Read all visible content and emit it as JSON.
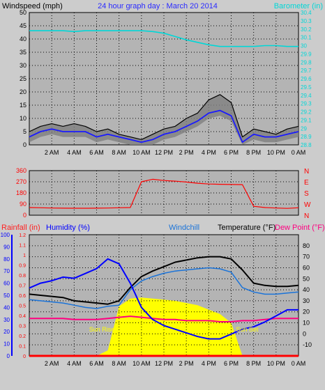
{
  "colors": {
    "page_bg": "#cccccc",
    "plot_bg": "#b4b4b4",
    "grid": "#000000",
    "windspeed": "#000000",
    "gust_shadow": "#808080",
    "wind_avg": "#1a1aff",
    "barometer": "#00d7d7",
    "direction": "#ff0000",
    "rain": "#ff0000",
    "humidity": "#0000ff",
    "windchill": "#1a73d9",
    "temperature": "#000000",
    "dewpoint": "#ff0080",
    "solar": "#ffff00"
  },
  "chart_data": [
    {
      "type": "line",
      "title": "24 hour graph day : March 20 2014",
      "ylabel": "Windspeed (mph)",
      "y2label": "Barometer (in)",
      "ylim": [
        0,
        50
      ],
      "y_ticks": [
        "0",
        "5",
        "10",
        "15",
        "20",
        "25",
        "30",
        "35",
        "40",
        "45",
        "50"
      ],
      "y2lim": [
        28.8,
        30.4
      ],
      "y2_ticks": [
        "28.8",
        "28.9",
        "29",
        "29.1",
        "29.2",
        "29.3",
        "29.4",
        "29.5",
        "29.6",
        "29.7",
        "29.8",
        "29.9",
        "30",
        "30.1",
        "30.2",
        "30.3",
        "30.4"
      ],
      "x_ticks": [
        "2 AM",
        "4 AM",
        "6 AM",
        "8 AM",
        "10 AM",
        "12 PM",
        "2 PM",
        "4 PM",
        "6 PM",
        "8 PM",
        "10 PM",
        "0 AM"
      ],
      "x_hours": [
        0,
        1,
        2,
        3,
        4,
        5,
        6,
        7,
        8,
        9,
        10,
        11,
        12,
        13,
        14,
        15,
        16,
        17,
        18,
        19,
        20,
        21,
        22,
        23,
        24
      ],
      "series": [
        {
          "key": "windspeed",
          "values": [
            5,
            7,
            8,
            7,
            8,
            7,
            5,
            6,
            4,
            3,
            2,
            4,
            6,
            7,
            10,
            12,
            17,
            19,
            16,
            3,
            6,
            5,
            4,
            6,
            7
          ]
        },
        {
          "key": "wind_avg",
          "values": [
            3,
            5,
            6,
            5,
            5,
            5,
            3,
            4,
            3,
            2,
            1,
            2,
            4,
            5,
            7,
            9,
            12,
            13,
            11,
            1,
            4,
            3,
            3,
            4,
            5
          ]
        },
        {
          "key": "barometer",
          "values": [
            30.18,
            30.18,
            30.18,
            30.18,
            30.17,
            30.18,
            30.18,
            30.18,
            30.18,
            30.18,
            30.18,
            30.17,
            30.15,
            30.11,
            30.07,
            30.04,
            30.01,
            29.99,
            29.99,
            29.99,
            29.99,
            30.0,
            30.0,
            29.99,
            29.99
          ]
        }
      ]
    },
    {
      "type": "line",
      "ylim": [
        0,
        360
      ],
      "y_ticks": [
        "0",
        "90",
        "180",
        "270",
        "360"
      ],
      "compass_labels": [
        "N",
        "W",
        "S",
        "E",
        "N"
      ],
      "x_hours": [
        0,
        1,
        2,
        3,
        4,
        5,
        6,
        7,
        8,
        9,
        10,
        11,
        12,
        13,
        14,
        15,
        16,
        17,
        18,
        19,
        20,
        21,
        22,
        23,
        24
      ],
      "series": [
        {
          "key": "direction",
          "values": [
            62,
            60,
            58,
            57,
            56,
            56,
            57,
            58,
            60,
            62,
            270,
            290,
            280,
            275,
            268,
            258,
            252,
            250,
            248,
            247,
            72,
            62,
            58,
            55,
            60
          ]
        }
      ]
    },
    {
      "type": "line",
      "ylabel": "Rainfall (in)",
      "y2label": "Humidity (%)",
      "y3label": "Windchill",
      "y4label": "Temperature (°F)",
      "y5label": "Dew Point (°F)",
      "rain_ticks": [
        "0",
        "0.1",
        "0.2",
        "0.3",
        "0.4",
        "0.5",
        "0.6",
        "0.7",
        "0.8",
        "0.9",
        "1",
        "1.1",
        "1.2"
      ],
      "humidity_ticks": [
        "0",
        "10",
        "20",
        "30",
        "40",
        "50",
        "60",
        "70",
        "80",
        "90",
        "100"
      ],
      "temp_lim": [
        -20,
        90
      ],
      "temp_ticks": [
        "-10",
        "0",
        "10",
        "20",
        "30",
        "40",
        "50",
        "60",
        "70",
        "80"
      ],
      "sunrise_label": "Sun Rise",
      "sunset_label": "Sun Set",
      "sunrise_hour": 7.2,
      "sunset_hour": 19.3,
      "x_ticks": [
        "2 AM",
        "4 AM",
        "6 AM",
        "8 AM",
        "10 AM",
        "12 PM",
        "2 PM",
        "4 PM",
        "6 PM",
        "8 PM",
        "10 PM",
        "0 AM"
      ],
      "x_hours": [
        0,
        1,
        2,
        3,
        4,
        5,
        6,
        7,
        8,
        9,
        10,
        11,
        12,
        13,
        14,
        15,
        16,
        17,
        18,
        19,
        20,
        21,
        22,
        23,
        24
      ],
      "series": [
        {
          "key": "humidity",
          "values": [
            56,
            60,
            62,
            65,
            64,
            68,
            72,
            80,
            76,
            60,
            40,
            30,
            25,
            22,
            19,
            16,
            14,
            14,
            18,
            22,
            24,
            28,
            33,
            38,
            38
          ]
        },
        {
          "key": "temperature",
          "values": [
            36,
            35,
            34,
            33,
            30,
            29,
            28,
            27,
            30,
            42,
            52,
            57,
            61,
            65,
            67,
            69,
            70,
            70,
            68,
            58,
            46,
            44,
            43,
            43,
            44
          ]
        },
        {
          "key": "windchill",
          "values": [
            31,
            30,
            29,
            28,
            26,
            24,
            23,
            25,
            26,
            40,
            48,
            52,
            55,
            57,
            58,
            59,
            60,
            59,
            56,
            42,
            38,
            36,
            36,
            37,
            38
          ]
        },
        {
          "key": "dewpoint",
          "values": [
            14,
            14,
            14,
            14,
            13,
            13,
            13,
            14,
            15,
            16,
            15,
            14,
            13,
            13,
            12,
            12,
            12,
            11,
            11,
            12,
            12,
            13,
            14,
            14,
            14
          ]
        },
        {
          "key": "rain",
          "values": [
            0,
            0,
            0,
            0,
            0,
            0,
            0,
            0,
            0,
            0,
            0,
            0,
            0,
            0,
            0,
            0,
            0,
            0,
            0,
            0,
            0,
            0,
            0,
            0,
            0
          ]
        },
        {
          "key": "solar",
          "values": [
            0,
            0,
            0,
            0,
            0,
            0,
            0,
            5,
            45,
            52,
            53,
            52,
            51,
            50,
            48,
            46,
            42,
            38,
            30,
            0,
            0,
            0,
            0,
            0,
            0
          ]
        }
      ]
    }
  ]
}
